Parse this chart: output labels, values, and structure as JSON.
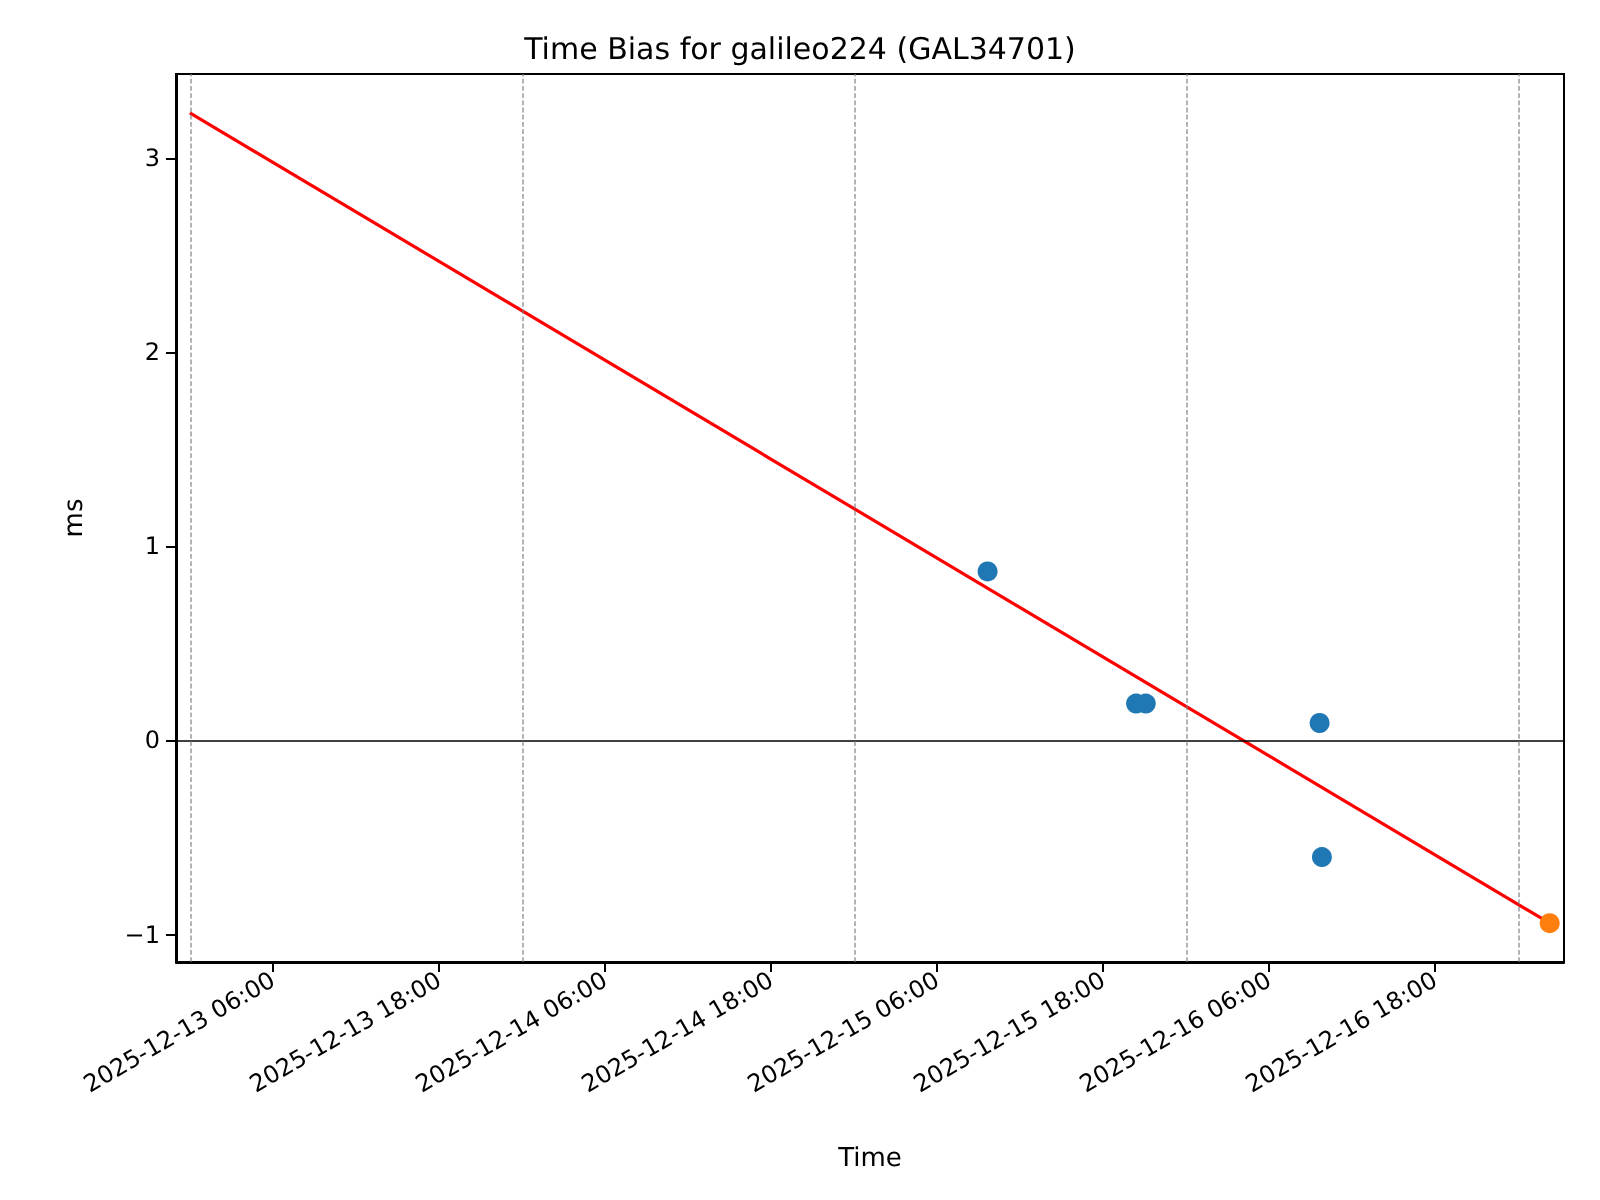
{
  "chart_data": {
    "type": "scatter",
    "title": "Time Bias for galileo224 (GAL34701)",
    "xlabel": "Time",
    "ylabel": "ms",
    "xlim": [
      "2025-12-12T23:00",
      "2025-12-17T03:20"
    ],
    "xticks": [
      {
        "value": "2025-12-13T06:00",
        "label": "2025-12-13 06:00"
      },
      {
        "value": "2025-12-13T18:00",
        "label": "2025-12-13 18:00"
      },
      {
        "value": "2025-12-14T06:00",
        "label": "2025-12-14 06:00"
      },
      {
        "value": "2025-12-14T18:00",
        "label": "2025-12-14 18:00"
      },
      {
        "value": "2025-12-15T06:00",
        "label": "2025-12-15 06:00"
      },
      {
        "value": "2025-12-15T18:00",
        "label": "2025-12-15 18:00"
      },
      {
        "value": "2025-12-16T06:00",
        "label": "2025-12-16 06:00"
      },
      {
        "value": "2025-12-16T18:00",
        "label": "2025-12-16 18:00"
      }
    ],
    "ylim": [
      -1.14,
      3.43
    ],
    "yticks": [
      -1,
      0,
      1,
      2,
      3
    ],
    "grid": false,
    "series": [
      {
        "type": "line",
        "color": "#ff0000",
        "marker": "none",
        "line_style": "solid",
        "x": [
          "2025-12-13T00:00",
          "2025-12-17T02:18"
        ],
        "values": [
          3.23,
          -0.94
        ]
      },
      {
        "type": "scatter",
        "color": "#1f77b4",
        "marker": "circle",
        "x": [
          "2025-12-15T09:40",
          "2025-12-15T20:24",
          "2025-12-15T21:06",
          "2025-12-16T09:40",
          "2025-12-16T09:50"
        ],
        "values": [
          0.87,
          0.19,
          0.19,
          0.09,
          -0.6
        ]
      },
      {
        "type": "scatter",
        "color": "#ff7f0e",
        "marker": "circle",
        "x": [
          "2025-12-17T02:18"
        ],
        "values": [
          -0.94
        ]
      }
    ],
    "ref_lines": [
      {
        "axis": "y",
        "value": 0,
        "color": "#000000",
        "line_style": "solid"
      },
      {
        "axis": "x",
        "value": "2025-12-13T00:00",
        "color": "#808080",
        "line_style": "dashed"
      },
      {
        "axis": "x",
        "value": "2025-12-14T00:00",
        "color": "#808080",
        "line_style": "dashed"
      },
      {
        "axis": "x",
        "value": "2025-12-15T00:00",
        "color": "#808080",
        "line_style": "dashed"
      },
      {
        "axis": "x",
        "value": "2025-12-16T00:00",
        "color": "#808080",
        "line_style": "dashed"
      },
      {
        "axis": "x",
        "value": "2025-12-17T00:00",
        "color": "#808080",
        "line_style": "dashed"
      }
    ]
  }
}
